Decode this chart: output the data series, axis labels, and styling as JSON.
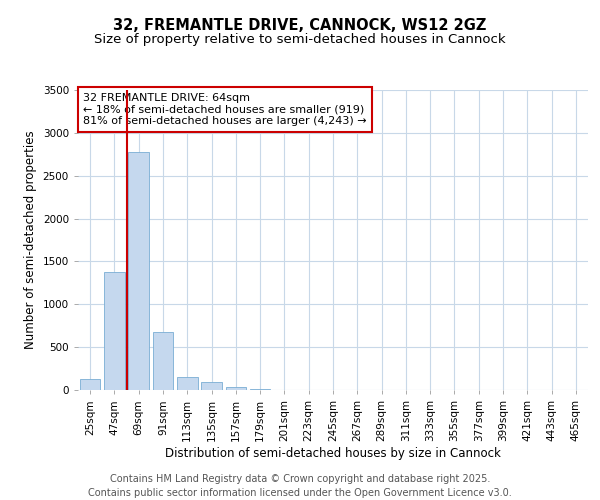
{
  "title_line1": "32, FREMANTLE DRIVE, CANNOCK, WS12 2GZ",
  "title_line2": "Size of property relative to semi-detached houses in Cannock",
  "xlabel": "Distribution of semi-detached houses by size in Cannock",
  "ylabel": "Number of semi-detached properties",
  "categories": [
    "25sqm",
    "47sqm",
    "69sqm",
    "91sqm",
    "113sqm",
    "135sqm",
    "157sqm",
    "179sqm",
    "201sqm",
    "223sqm",
    "245sqm",
    "267sqm",
    "289sqm",
    "311sqm",
    "333sqm",
    "355sqm",
    "377sqm",
    "399sqm",
    "421sqm",
    "443sqm",
    "465sqm"
  ],
  "values": [
    130,
    1380,
    2780,
    680,
    150,
    90,
    40,
    10,
    0,
    0,
    0,
    0,
    0,
    0,
    0,
    0,
    0,
    0,
    0,
    0,
    0
  ],
  "bar_color": "#c5d8ee",
  "bar_edgecolor": "#7aaed4",
  "vline_color": "#cc0000",
  "vline_x": 1.5,
  "annotation_text": "32 FREMANTLE DRIVE: 64sqm\n← 18% of semi-detached houses are smaller (919)\n81% of semi-detached houses are larger (4,243) →",
  "annotation_box_edgecolor": "#cc0000",
  "annotation_box_facecolor": "#ffffff",
  "ylim": [
    0,
    3500
  ],
  "yticks": [
    0,
    500,
    1000,
    1500,
    2000,
    2500,
    3000,
    3500
  ],
  "background_color": "#ffffff",
  "grid_color": "#c8d8e8",
  "footer_line1": "Contains HM Land Registry data © Crown copyright and database right 2025.",
  "footer_line2": "Contains public sector information licensed under the Open Government Licence v3.0.",
  "title_fontsize": 10.5,
  "subtitle_fontsize": 9.5,
  "label_fontsize": 8.5,
  "tick_fontsize": 7.5,
  "annotation_fontsize": 8,
  "footer_fontsize": 7
}
